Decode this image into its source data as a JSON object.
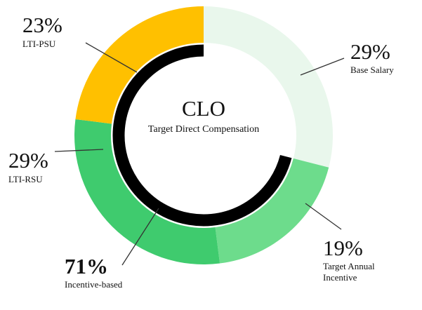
{
  "chart_data": {
    "type": "pie",
    "title": "CLO",
    "subtitle": "Target Direct Compensation",
    "categories": [
      "Base Salary",
      "Target Annual Incentive",
      "LTI-RSU",
      "LTI-PSU"
    ],
    "values": [
      29,
      19,
      29,
      23
    ],
    "value_labels": [
      "29%",
      "19%",
      "29%",
      "23%"
    ],
    "colors": [
      "#e9f7ec",
      "#6ddc8c",
      "#3fcb6e",
      "#ffc000"
    ],
    "annotation": {
      "value_label": "71%",
      "text": "Incentive-based",
      "covers": [
        "Target Annual Incentive",
        "LTI-RSU",
        "LTI-PSU"
      ],
      "color": "#000000"
    }
  }
}
